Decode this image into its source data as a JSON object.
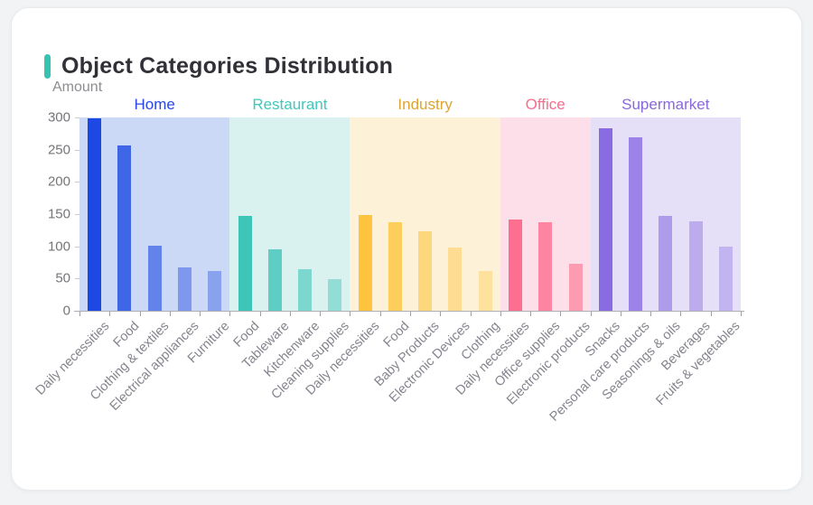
{
  "page": {
    "background_color": "#f1f3f4"
  },
  "card": {
    "title": "Object Categories Distribution",
    "accent_color": "#36c3b2",
    "title_color": "#303036"
  },
  "chart_data": {
    "type": "bar",
    "title": "Object Categories Distribution",
    "xlabel": "",
    "ylabel": "Amount",
    "ylim": [
      0,
      300
    ],
    "yticks": [
      0,
      50,
      100,
      150,
      200,
      250,
      300
    ],
    "grid": false,
    "legend_position": "top-group-labels",
    "axis_tick_label_rotation": 45,
    "groups": [
      {
        "name": "Home",
        "label_color": "#2b46e8",
        "band_color": "#ccd9f6",
        "bar_color": "#1c49e3",
        "bars": [
          {
            "label": "Daily necessities",
            "value": 298
          },
          {
            "label": "Food",
            "value": 257
          },
          {
            "label": "Clothing & textiles",
            "value": 101
          },
          {
            "label": "Electrical appliances",
            "value": 67
          },
          {
            "label": "Furniture",
            "value": 62
          }
        ]
      },
      {
        "name": "Restaurant",
        "label_color": "#3fc8bb",
        "band_color": "#d9f2f0",
        "bar_color": "#3ec4b9",
        "bars": [
          {
            "label": "Food",
            "value": 147
          },
          {
            "label": "Tableware",
            "value": 96
          },
          {
            "label": "Kitchenware",
            "value": 64
          },
          {
            "label": "Cleaning supplies",
            "value": 49
          }
        ]
      },
      {
        "name": "Industry",
        "label_color": "#dfa32f",
        "band_color": "#fdf2d8",
        "bar_color": "#fec43d",
        "bars": [
          {
            "label": "Daily necessities",
            "value": 149
          },
          {
            "label": "Food",
            "value": 137
          },
          {
            "label": "Baby Products",
            "value": 124
          },
          {
            "label": "Electronic Devices",
            "value": 98
          },
          {
            "label": "Clothing",
            "value": 62
          }
        ]
      },
      {
        "name": "Office",
        "label_color": "#fb6b8e",
        "band_color": "#fcdfe9",
        "bar_color": "#fd6e90",
        "bars": [
          {
            "label": "Daily necessities",
            "value": 142
          },
          {
            "label": "Office supplies",
            "value": 138
          },
          {
            "label": "Electronic products",
            "value": 73
          }
        ]
      },
      {
        "name": "Supermarket",
        "label_color": "#8a68dd",
        "band_color": "#e5e0f8",
        "bar_color": "#8a6ce2",
        "bars": [
          {
            "label": "Snacks",
            "value": 283
          },
          {
            "label": "Personal care products",
            "value": 269
          },
          {
            "label": "Seasonings & oils",
            "value": 147
          },
          {
            "label": "Beverages",
            "value": 139
          },
          {
            "label": "Fruits & vegetables",
            "value": 99
          }
        ]
      }
    ]
  }
}
